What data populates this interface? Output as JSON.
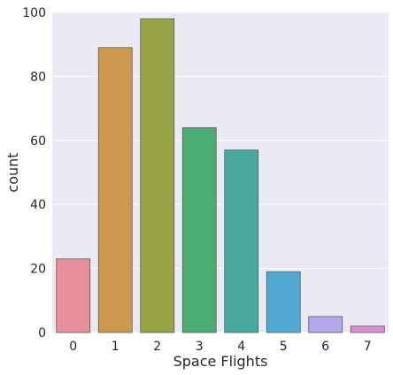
{
  "chart_data": {
    "type": "bar",
    "xlabel": "Space Flights",
    "ylabel": "count",
    "categories": [
      "0",
      "1",
      "2",
      "3",
      "4",
      "5",
      "6",
      "7"
    ],
    "values": [
      23,
      89,
      98,
      64,
      57,
      19,
      5,
      2
    ],
    "ylim": [
      0,
      100
    ],
    "yticks": [
      0,
      20,
      40,
      60,
      80,
      100
    ],
    "grid": true,
    "colors": [
      "#e8909a",
      "#cc9a4e",
      "#97a345",
      "#4bad72",
      "#48a9a0",
      "#4fa9d3",
      "#b6a6ec",
      "#e38ad4"
    ],
    "background": "#eaeaf2"
  }
}
